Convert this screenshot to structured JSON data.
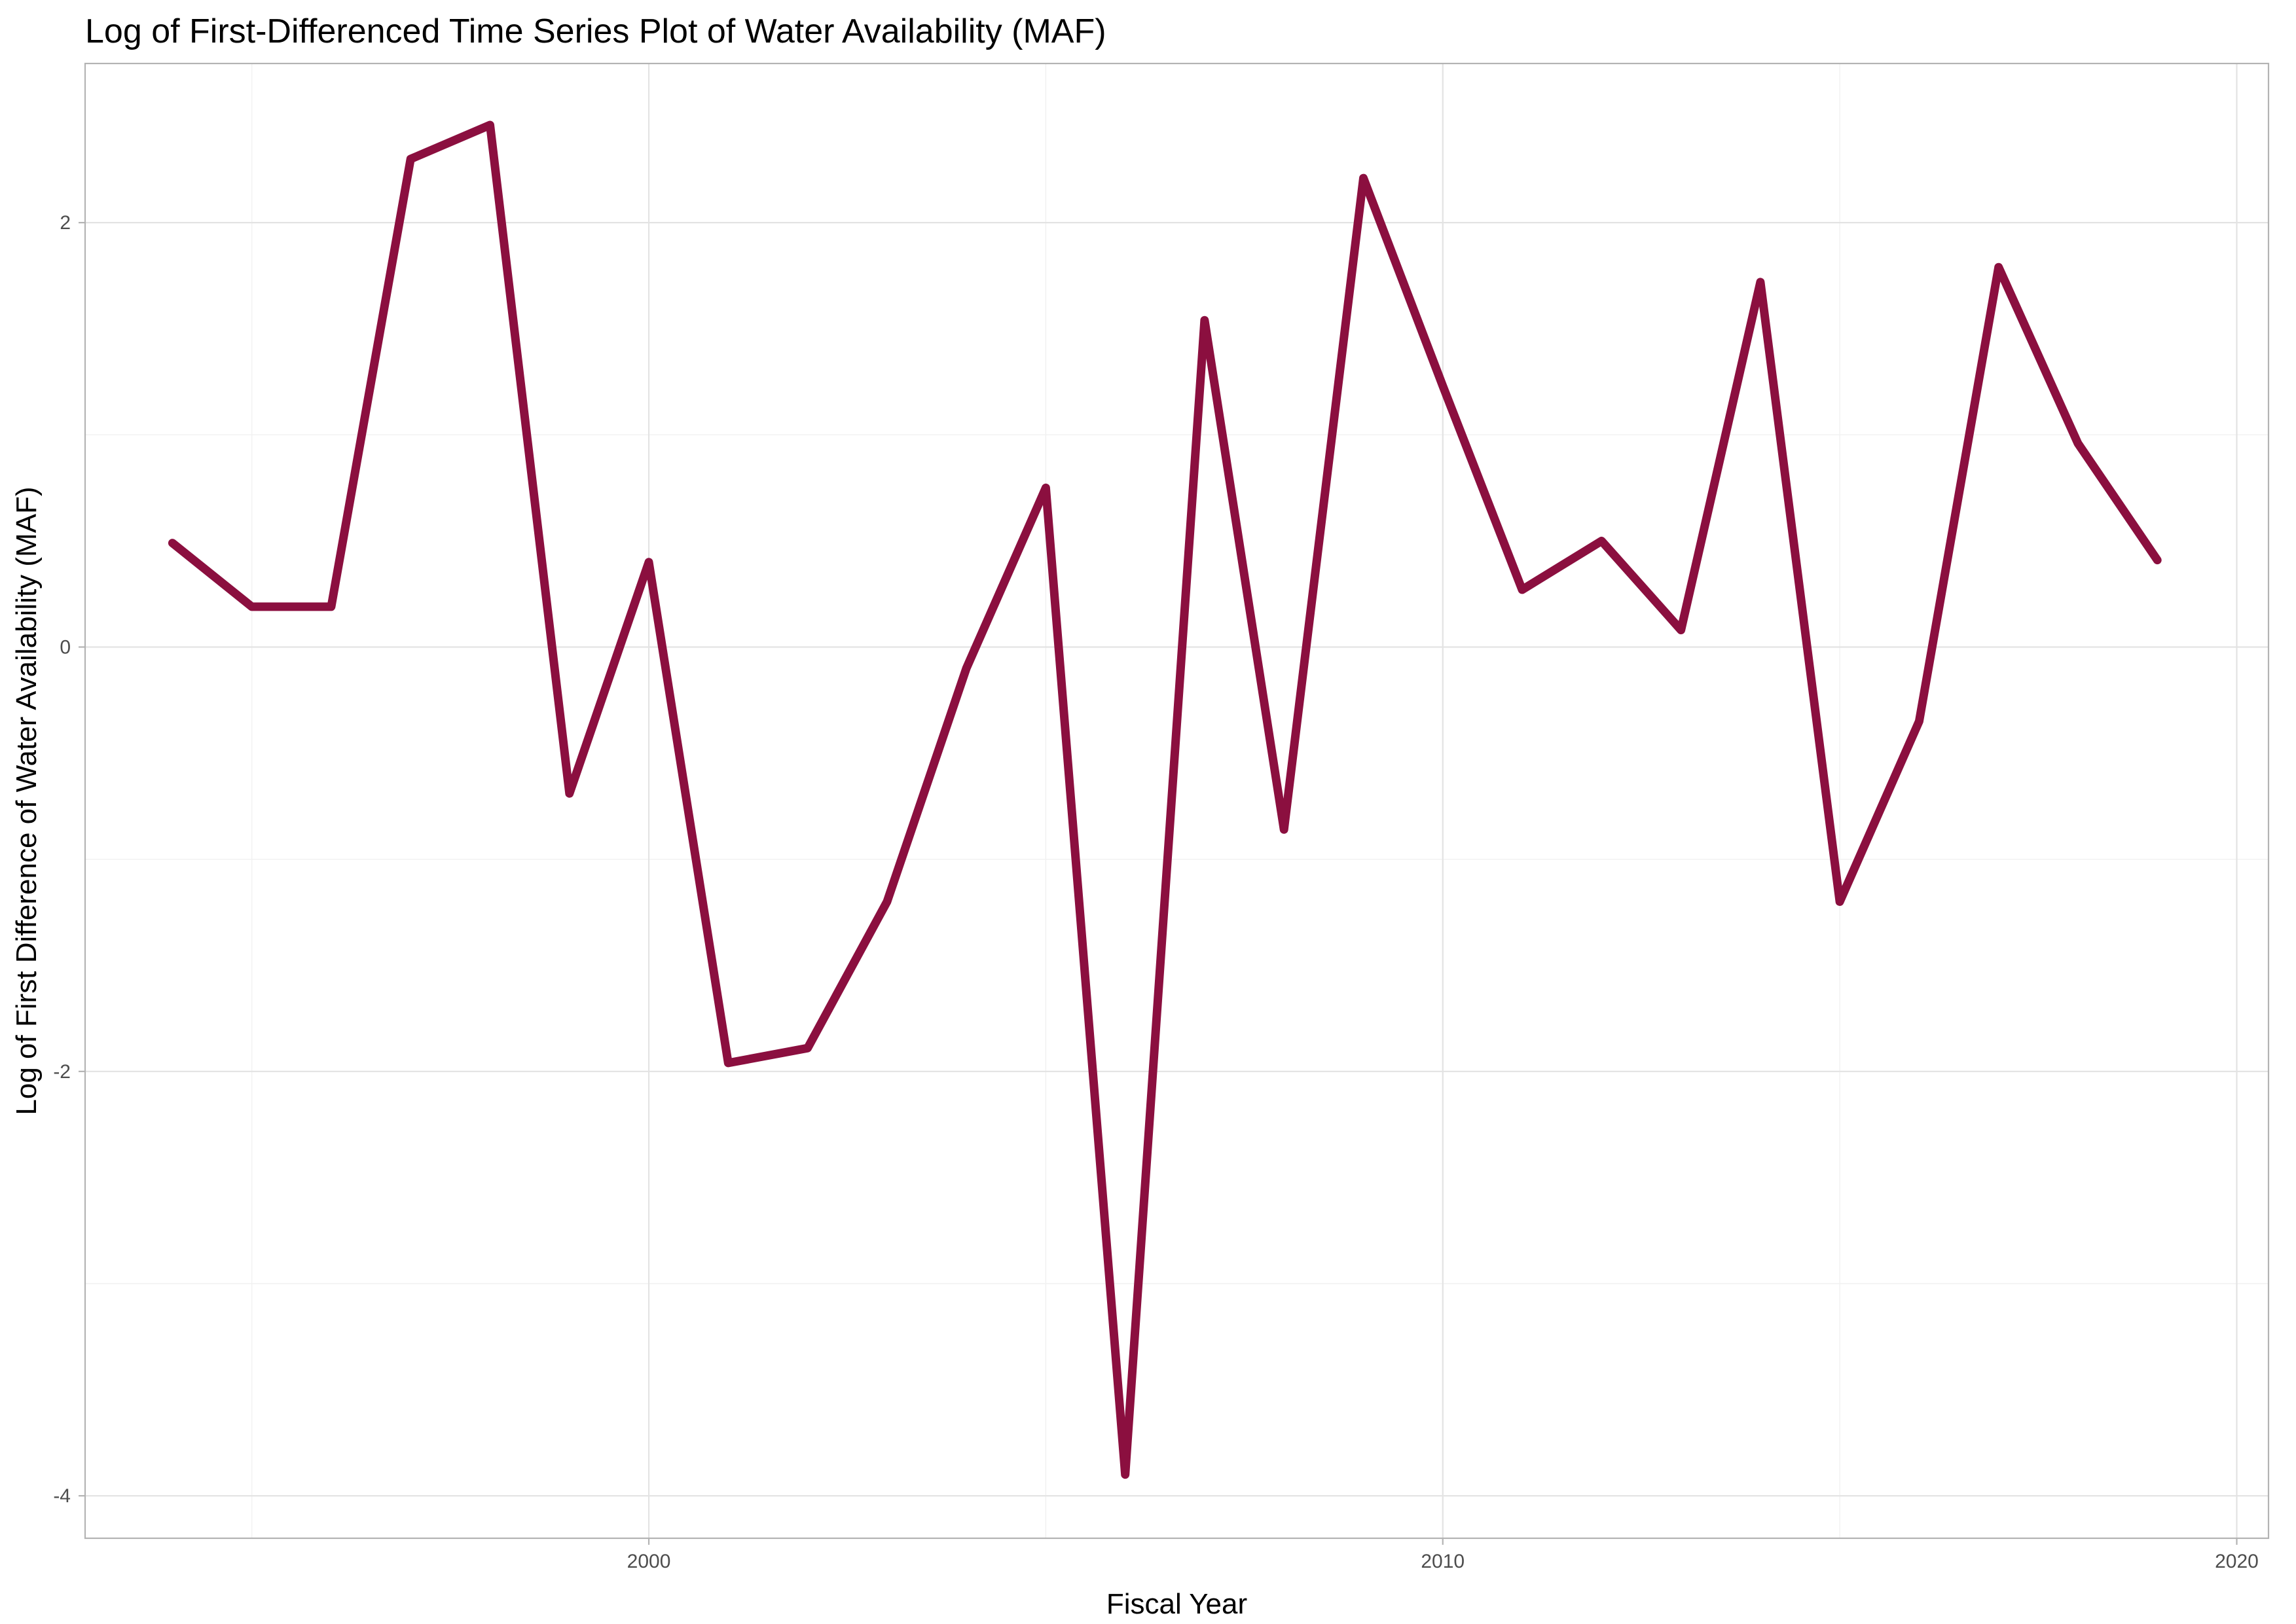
{
  "chart_data": {
    "type": "line",
    "title": "Log of First-Differenced Time Series Plot of Water Availability (MAF)",
    "xlabel": "Fiscal Year",
    "ylabel": "Log of First Difference of Water Availability (MAF)",
    "xlim": [
      1992.9,
      2020.4
    ],
    "ylim": [
      -4.2,
      2.75
    ],
    "x_ticks": [
      2000,
      2010,
      2020
    ],
    "x_tick_labels": [
      "2000",
      "2010",
      "2020"
    ],
    "y_ticks": [
      -4,
      -2,
      0,
      2
    ],
    "y_tick_labels": [
      "-4",
      "-2",
      "0",
      "2"
    ],
    "grid": true,
    "legend": "none",
    "line_color": "#8b0f3f",
    "series": [
      {
        "x": [
          1994,
          1995,
          1996,
          1997,
          1998,
          1999,
          2000,
          2001,
          2002,
          2003,
          2004,
          2005,
          2006,
          2007,
          2008,
          2009,
          2010,
          2011,
          2012,
          2013,
          2014,
          2015,
          2016,
          2017,
          2018,
          2019
        ],
        "values": [
          0.49,
          0.19,
          0.19,
          2.3,
          2.46,
          -0.69,
          0.4,
          -1.96,
          -1.89,
          -1.2,
          -0.1,
          0.75,
          -3.9,
          1.54,
          -0.86,
          2.21,
          1.23,
          0.27,
          0.5,
          0.08,
          1.72,
          -1.2,
          -0.35,
          1.79,
          0.96,
          0.41
        ]
      }
    ]
  }
}
